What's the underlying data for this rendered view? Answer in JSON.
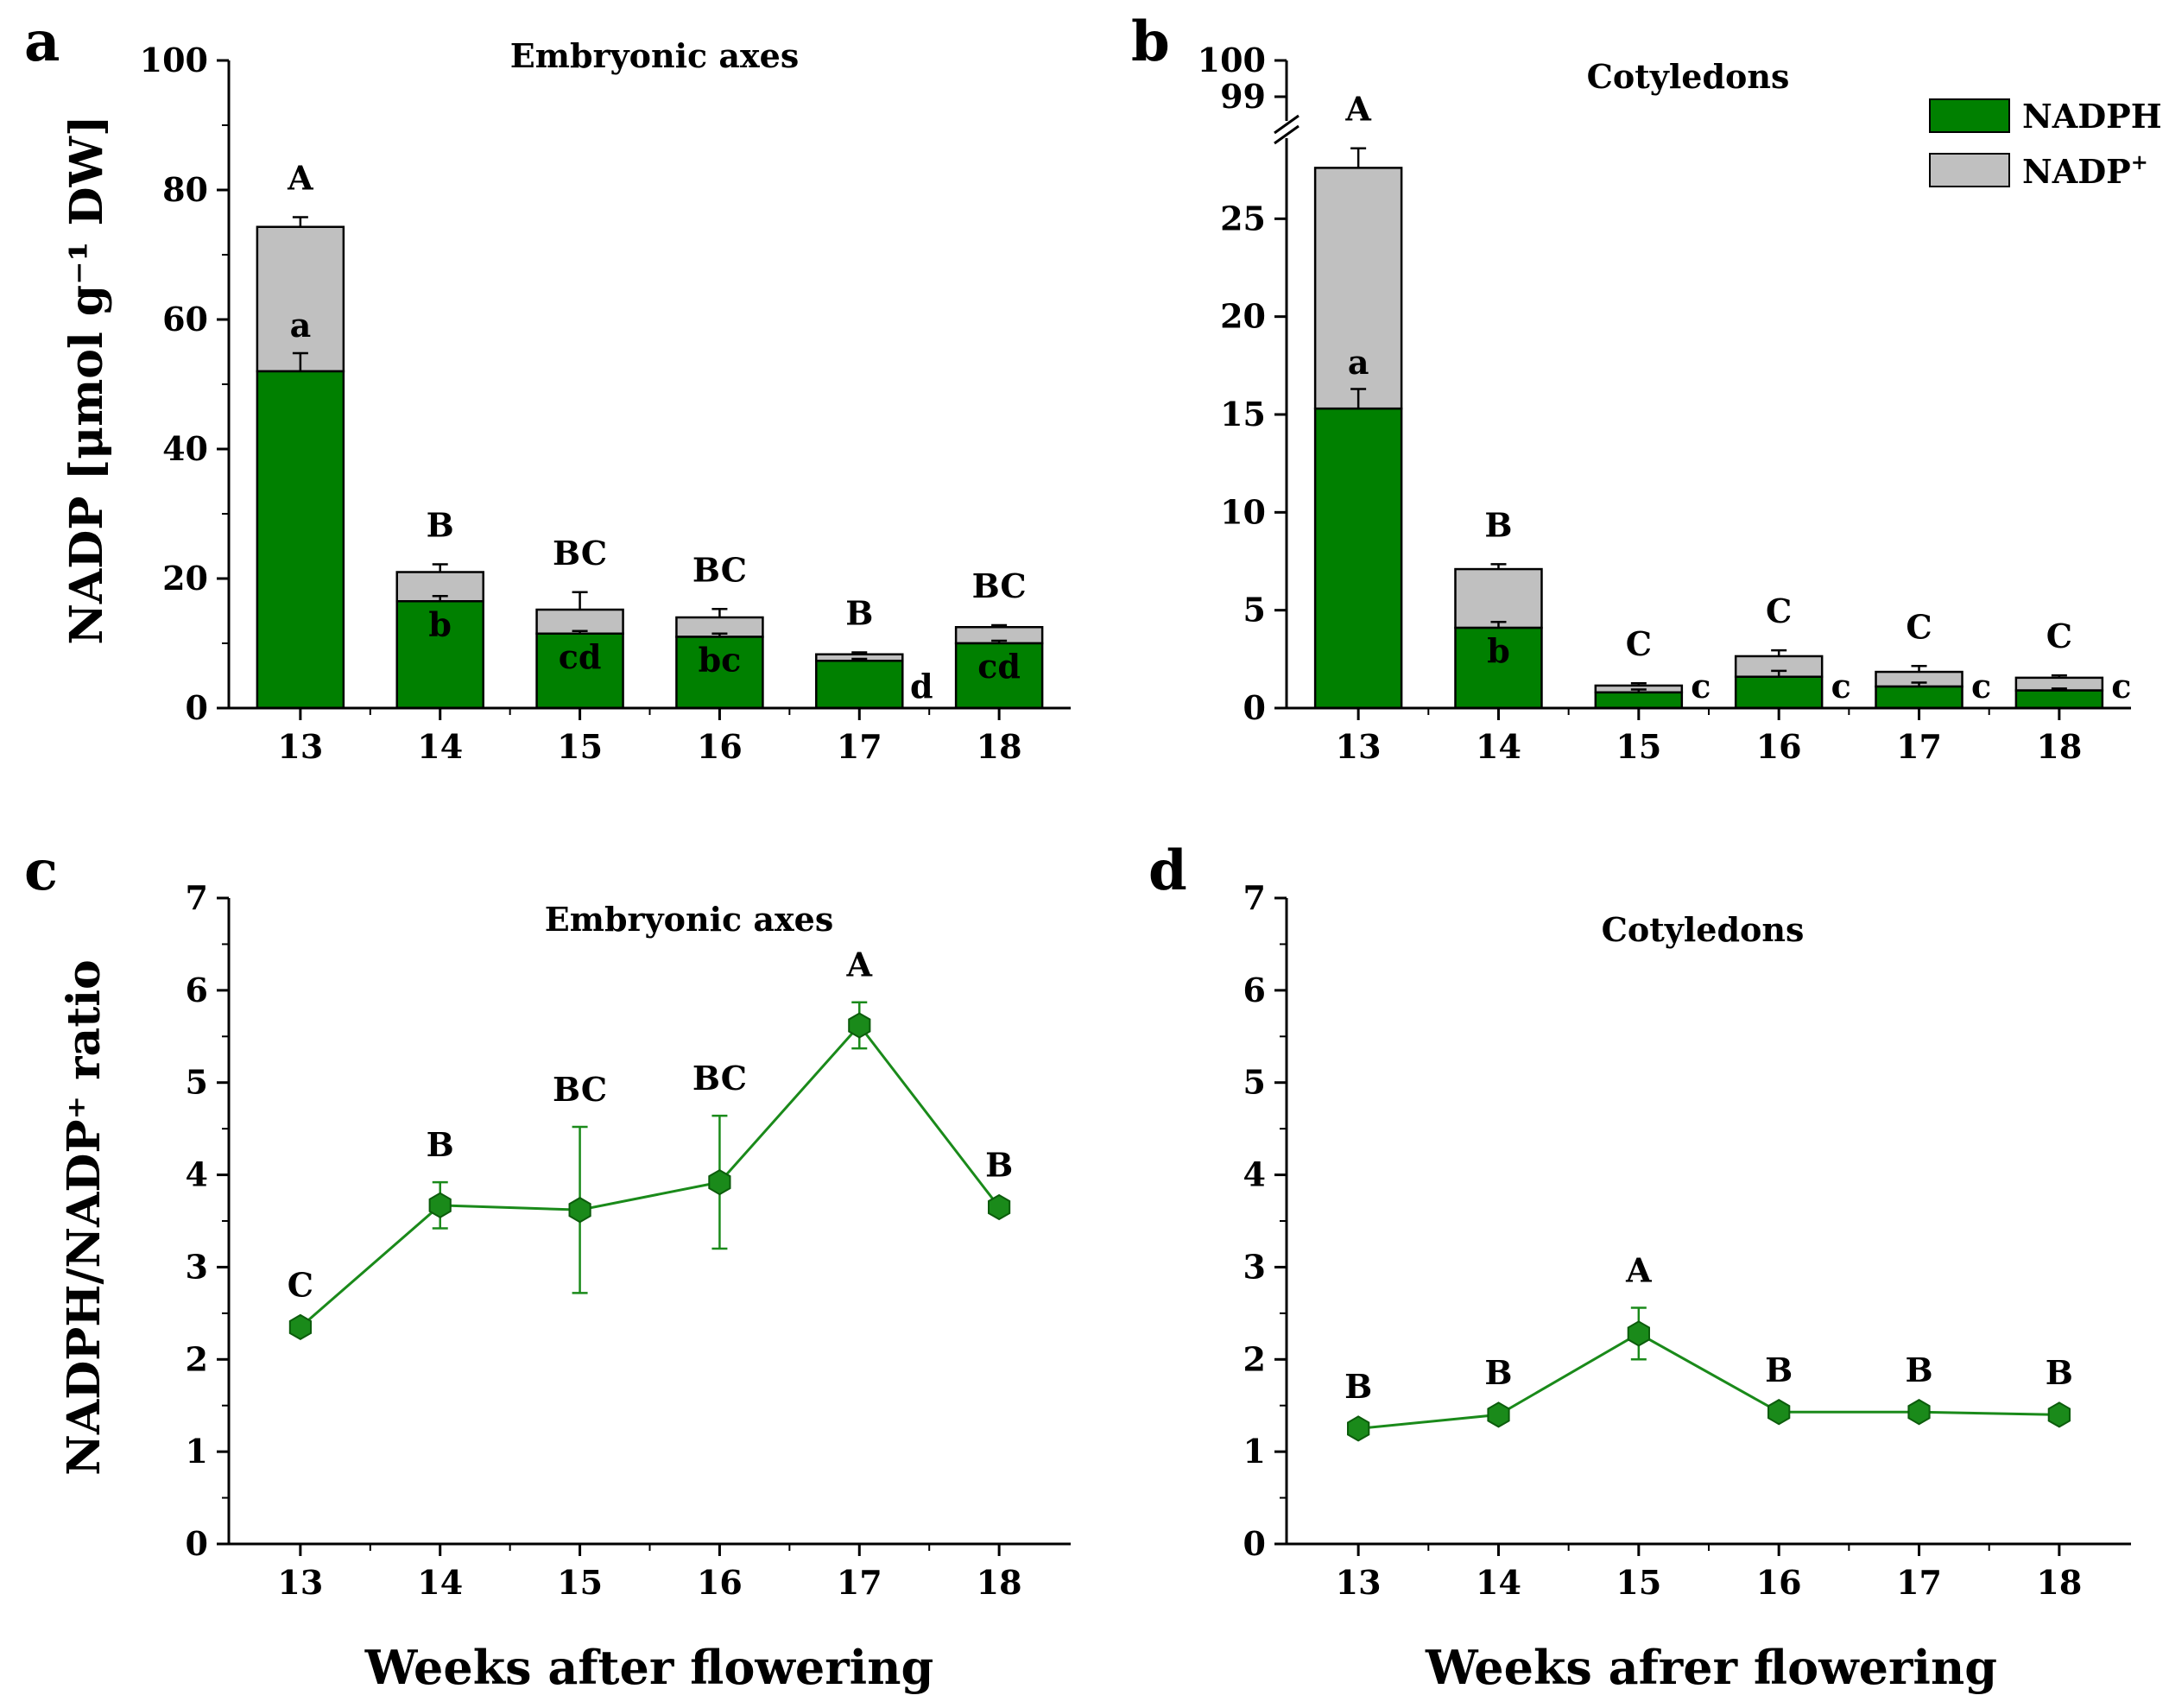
{
  "chart_data": [
    {
      "id": "a",
      "panel_letter": "a",
      "type": "bar",
      "stacked": true,
      "title": "Embryonic axes",
      "ylabel": "NADP [μmol g⁻¹ DW]",
      "xlabel": "",
      "categories": [
        "13",
        "14",
        "15",
        "16",
        "17",
        "18"
      ],
      "ylim": [
        0,
        100
      ],
      "yticks": [
        "0",
        "20",
        "40",
        "60",
        "80",
        "100"
      ],
      "series": [
        {
          "name": "NADPH",
          "color": "#008000",
          "values": [
            52,
            16.5,
            11.5,
            11,
            7.3,
            10
          ],
          "errors": [
            2.8,
            0.8,
            0.4,
            0.5,
            0.3,
            0.4
          ]
        },
        {
          "name": "NADP⁺",
          "color": "#c0c0c0",
          "values": [
            22.3,
            4.5,
            3.7,
            3,
            1,
            2.5
          ],
          "errors": [
            1.5,
            1.2,
            2.7,
            1.3,
            0.3,
            0.3
          ]
        }
      ],
      "letters_top": [
        "A",
        "B",
        "BC",
        "BC",
        "B",
        "BC"
      ],
      "letters_nadph": [
        "a",
        "b",
        "cd",
        "bc",
        "d",
        "cd"
      ]
    },
    {
      "id": "b",
      "panel_letter": "b",
      "type": "bar",
      "stacked": true,
      "title": "Cotyledons",
      "ylabel": "",
      "xlabel": "",
      "categories": [
        "13",
        "14",
        "15",
        "16",
        "17",
        "18"
      ],
      "ylim": [
        0,
        30
      ],
      "y_break": {
        "lower_top": 30,
        "upper_ticks": [
          "99",
          "100"
        ]
      },
      "yticks": [
        "0",
        "5",
        "10",
        "15",
        "20",
        "25"
      ],
      "series": [
        {
          "name": "NADPH",
          "color": "#008000",
          "values": [
            15.3,
            4.1,
            0.8,
            1.6,
            1.1,
            0.9
          ],
          "errors": [
            1.0,
            0.3,
            0.15,
            0.3,
            0.2,
            0.1
          ]
        },
        {
          "name": "NADP⁺",
          "color": "#c0c0c0",
          "values": [
            12.3,
            3.0,
            0.35,
            1.05,
            0.75,
            0.65
          ],
          "errors": [
            1.0,
            0.25,
            0.12,
            0.3,
            0.3,
            0.12
          ]
        }
      ],
      "letters_top": [
        "A",
        "B",
        "C",
        "C",
        "C",
        "C"
      ],
      "letters_nadph": [
        "a",
        "b",
        "c",
        "c",
        "c",
        "c"
      ],
      "legend": [
        {
          "label_main": "NADPH",
          "label_sup": "",
          "color": "#008000"
        },
        {
          "label_main": "NADP",
          "label_sup": "+",
          "color": "#c0c0c0"
        }
      ]
    },
    {
      "id": "c",
      "panel_letter": "c",
      "type": "line",
      "title": "Embryonic axes",
      "ylabel": "NADPH/NADP⁺ ratio",
      "xlabel": "Weeks after flowering",
      "categories": [
        "13",
        "14",
        "15",
        "16",
        "17",
        "18"
      ],
      "ylim": [
        0,
        7
      ],
      "yticks": [
        "0",
        "1",
        "2",
        "3",
        "4",
        "5",
        "6",
        "7"
      ],
      "series": [
        {
          "name": "NADPH/NADP⁺",
          "color": "#1a8a1a",
          "values": [
            2.35,
            3.67,
            3.62,
            3.92,
            5.62,
            3.65
          ],
          "errors": [
            0.05,
            0.25,
            0.9,
            0.72,
            0.25,
            0.05
          ]
        }
      ],
      "letters": [
        "C",
        "B",
        "BC",
        "BC",
        "A",
        "B"
      ]
    },
    {
      "id": "d",
      "panel_letter": "d",
      "type": "line",
      "title": "Cotyledons",
      "ylabel": "",
      "xlabel": "Weeks afrer flowering",
      "categories": [
        "13",
        "14",
        "15",
        "16",
        "17",
        "18"
      ],
      "ylim": [
        0,
        7
      ],
      "yticks": [
        "0",
        "1",
        "2",
        "3",
        "4",
        "5",
        "6",
        "7"
      ],
      "series": [
        {
          "name": "NADPH/NADP⁺",
          "color": "#1a8a1a",
          "values": [
            1.25,
            1.4,
            2.28,
            1.43,
            1.43,
            1.4
          ],
          "errors": [
            0.05,
            0.05,
            0.28,
            0.05,
            0.05,
            0.05
          ]
        }
      ],
      "letters": [
        "B",
        "B",
        "A",
        "B",
        "B",
        "B"
      ]
    }
  ]
}
